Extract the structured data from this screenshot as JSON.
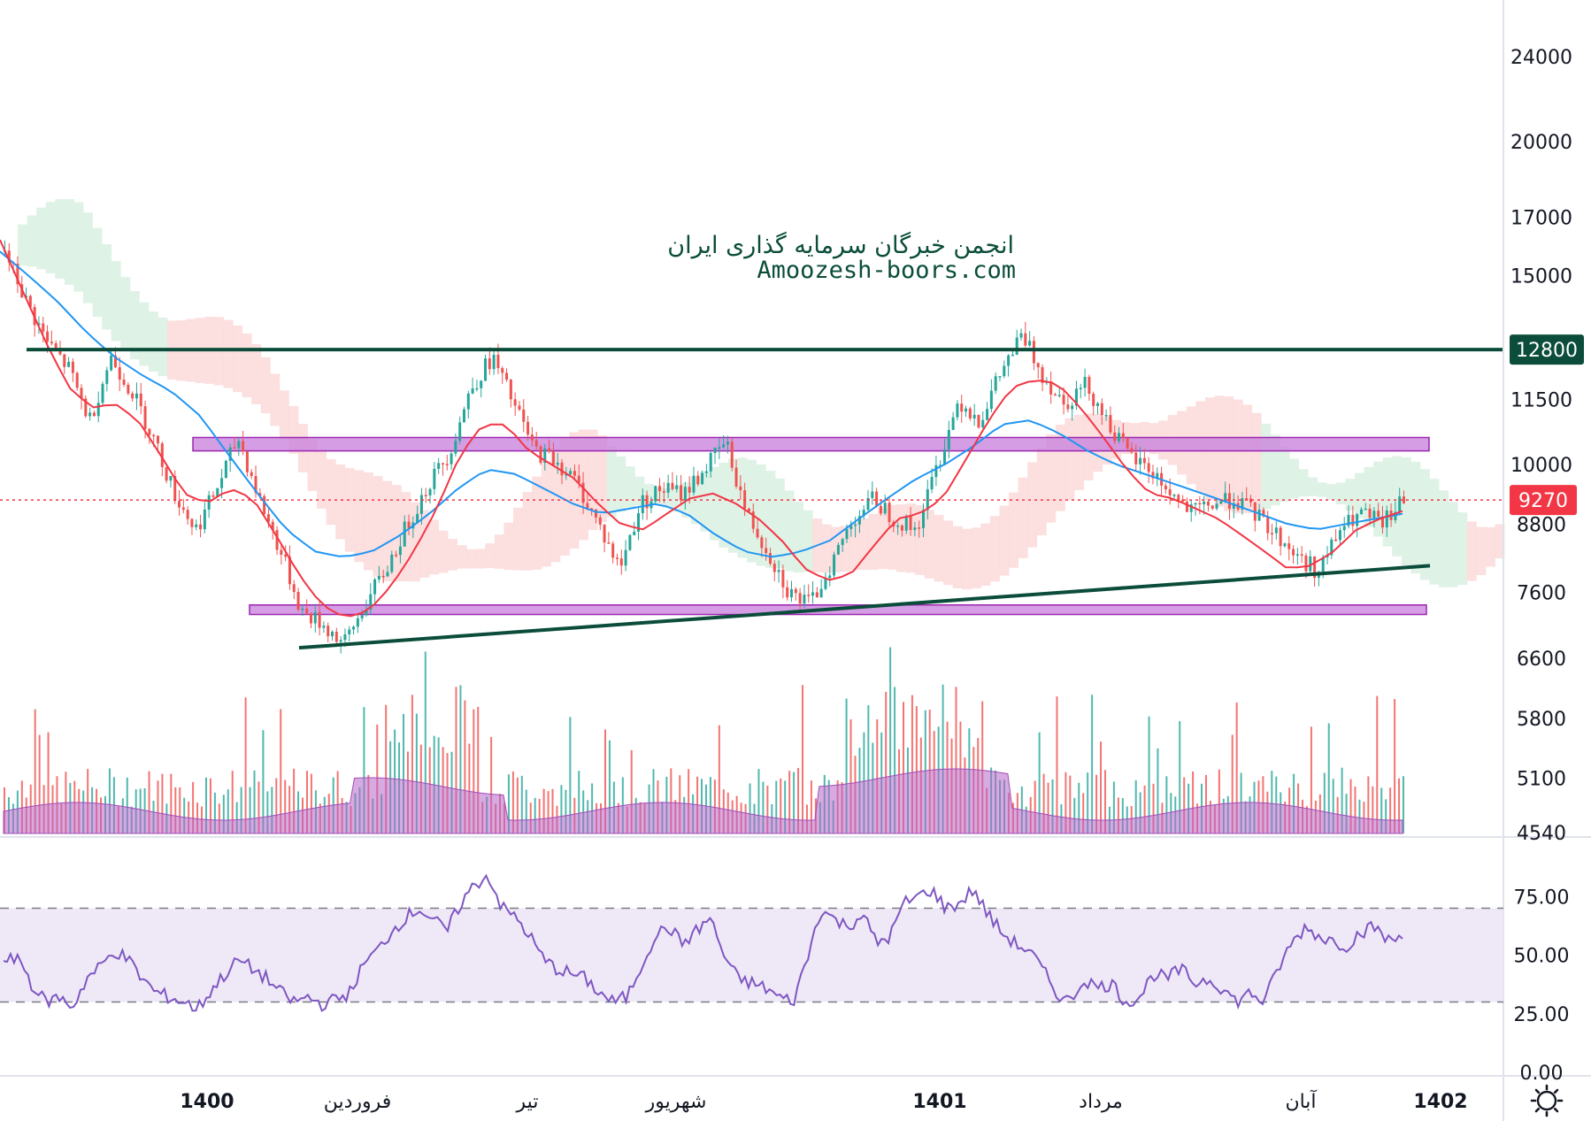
{
  "watermark": {
    "line1": "انجمن خبرگان سرمایه گذاری ایران",
    "line2": "Amoozesh-boors.com"
  },
  "colors": {
    "up": "#26a69a",
    "down": "#ef5350",
    "sma_fast": "#f23645",
    "sma_slow": "#2196f3",
    "resistance": "#0b4d3a",
    "trendline": "#0b4d3a",
    "zone_fill": "#c77ddb",
    "zone_stroke": "#9c27b0",
    "volume_area": "#b664c8",
    "rsi_line": "#7e57c2",
    "rsi_band": "#ede7f6",
    "last_price": "#f23645",
    "cloud_bear": "#fcd9d9",
    "cloud_bull": "#d9f0e2"
  },
  "chart_data": [
    {
      "type": "candlestick",
      "scale": "log",
      "ylim": [
        4540,
        26000
      ],
      "y_ticks": [
        24000,
        20000,
        17000,
        15000,
        11500,
        10000,
        8800,
        7600,
        6600,
        5800,
        5100,
        4540
      ],
      "x_labels": [
        {
          "label": "1400",
          "major": true
        },
        {
          "label": "فروردین",
          "major": false
        },
        {
          "label": "تیر",
          "major": false
        },
        {
          "label": "شهریور",
          "major": false
        },
        {
          "label": "1401",
          "major": true
        },
        {
          "label": "مرداد",
          "major": false
        },
        {
          "label": "آبان",
          "major": false
        },
        {
          "label": "1402",
          "major": true
        }
      ],
      "resistance_level": {
        "value": 12800,
        "label": "12800"
      },
      "last_price": {
        "value": 9270,
        "label": "9270"
      },
      "zones": [
        {
          "low": 10300,
          "high": 10600
        },
        {
          "low": 7250,
          "high": 7400
        }
      ],
      "trendline": {
        "from_price": 6750,
        "to_price": 8050
      },
      "price_path": [
        15800,
        14200,
        13000,
        12300,
        11000,
        12600,
        11700,
        10600,
        9400,
        8700,
        9500,
        10600,
        9300,
        8300,
        7300,
        7100,
        6800,
        7400,
        8000,
        8800,
        9600,
        10300,
        11800,
        12600,
        11400,
        10300,
        10100,
        9600,
        8800,
        8000,
        9200,
        9500,
        9400,
        9900,
        10500,
        9000,
        8300,
        7600,
        7400,
        8100,
        8900,
        9300,
        8900,
        8700,
        10000,
        11500,
        11000,
        12200,
        13200,
        12100,
        11400,
        11900,
        11000,
        10200,
        9900,
        9400,
        9000,
        9200,
        9300,
        9000,
        8600,
        8200,
        7950,
        8700,
        9000,
        8800,
        9270
      ],
      "sma_fast": [
        16200,
        14500,
        13000,
        11800,
        11300,
        11400,
        11000,
        10200,
        9400,
        9200,
        9500,
        9300,
        8600,
        7900,
        7400,
        7200,
        7300,
        7700,
        8300,
        9100,
        10200,
        10900,
        10900,
        10300,
        10000,
        9700,
        9200,
        8800,
        8700,
        9000,
        9300,
        9400,
        9200,
        8900,
        8500,
        8000,
        7800,
        7900,
        8400,
        8900,
        9000,
        9300,
        10100,
        11000,
        11800,
        12000,
        11900,
        11300,
        10600,
        9900,
        9400,
        9300,
        9100,
        8900,
        8600,
        8300,
        8000,
        8050,
        8300,
        8700,
        8900,
        9050
      ],
      "sma_slow": [
        15800,
        15000,
        14200,
        13300,
        12600,
        12100,
        11700,
        11100,
        10200,
        9400,
        8700,
        8300,
        8200,
        8300,
        8600,
        9000,
        9500,
        9900,
        9800,
        9500,
        9200,
        9000,
        9100,
        9200,
        9000,
        8600,
        8300,
        8200,
        8300,
        8500,
        8900,
        9300,
        9700,
        10000,
        10400,
        10900,
        11000,
        10700,
        10300,
        10000,
        9800,
        9600,
        9400,
        9200,
        9000,
        8800,
        8700,
        8800,
        8900,
        9000
      ],
      "series": [
        {
          "name": "",
          "type": "volume"
        },
        {
          "name": "",
          "type": "ichimoku"
        }
      ]
    },
    {
      "type": "line",
      "ylim": [
        0,
        100
      ],
      "y_ticks": [
        "75.00",
        "50.00",
        "25.00",
        "0.00"
      ],
      "bands": [
        30,
        70
      ],
      "rsi_path": [
        45,
        50,
        38,
        30,
        32,
        28,
        40,
        45,
        52,
        48,
        40,
        34,
        32,
        30,
        27,
        35,
        42,
        48,
        44,
        40,
        34,
        30,
        32,
        29,
        31,
        34,
        46,
        52,
        60,
        66,
        70,
        65,
        60,
        72,
        80,
        84,
        70,
        66,
        58,
        48,
        44,
        42,
        40,
        34,
        30,
        32,
        45,
        58,
        62,
        55,
        60,
        66,
        50,
        40,
        38,
        36,
        32,
        30,
        48,
        70,
        65,
        62,
        68,
        55,
        58,
        72,
        75,
        78,
        70,
        72,
        78,
        68,
        60,
        55,
        52,
        44,
        34,
        30,
        40,
        36,
        38,
        30,
        32,
        42,
        40,
        44,
        38,
        40,
        36,
        30,
        34,
        30,
        44,
        55,
        62,
        58,
        56,
        54,
        60,
        62,
        56,
        58
      ]
    }
  ]
}
